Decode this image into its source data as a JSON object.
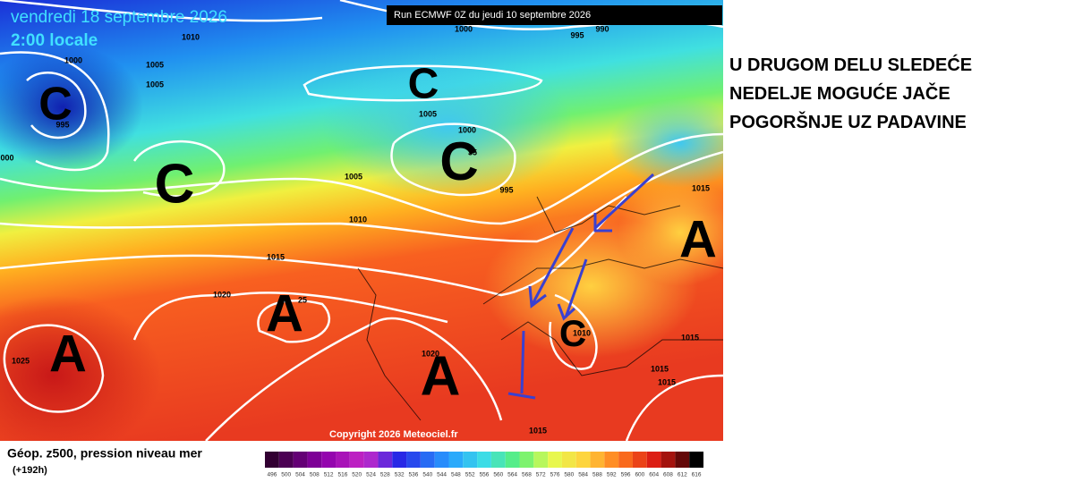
{
  "header": {
    "date": "vendredi 18 septembre 2026",
    "time": "2:00 locale",
    "run": "Run ECMWF 0Z du jeudi 10 septembre 2026"
  },
  "map": {
    "isobar_labels": [
      "1010",
      "1000",
      "1005",
      "1005",
      "995",
      "000",
      "1000",
      "995",
      "990",
      "1005",
      "1000",
      "35",
      "1005",
      "995",
      "1010",
      "1015",
      "1020",
      "25",
      "1025",
      "1020",
      "1015",
      "1015",
      "1015",
      "1015",
      "1015",
      "1010"
    ],
    "systems": [
      "C",
      "C",
      "C",
      "C",
      "A",
      "A",
      "A",
      "A",
      "C"
    ],
    "copyright": "Copyright 2026 Meteociel.fr"
  },
  "legend": {
    "title": "Géop. z500, pression niveau mer",
    "lead_time": "(+192h)",
    "scale": [
      496,
      500,
      504,
      508,
      512,
      516,
      520,
      524,
      528,
      532,
      536,
      540,
      544,
      548,
      552,
      556,
      560,
      564,
      568,
      572,
      576,
      580,
      584,
      588,
      592,
      596,
      600,
      604,
      608,
      612,
      616
    ]
  },
  "annotation": {
    "lines": [
      "U DRUGOM DELU SLEDEĆE",
      "NEDELJE MOGUĆE JAČE",
      "POGORŠNJE UZ PADAVINE"
    ]
  }
}
